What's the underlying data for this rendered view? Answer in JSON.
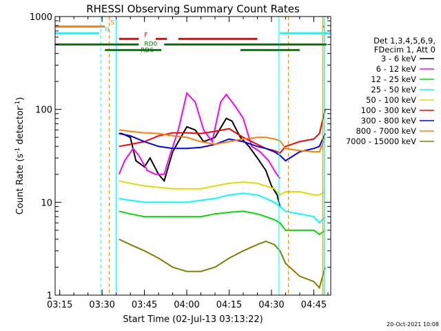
{
  "chart_data": {
    "type": "line",
    "title": "RHESSI Observing Summary Count Rates",
    "xlabel": "Start Time (02-Jul-13 03:13:22)",
    "ylabel_main": "Count Rate (s",
    "ylabel_sup": "-1",
    "ylabel_mid": " detector",
    "ylabel_end": ")",
    "yscale": "log",
    "ylim": [
      1,
      1000
    ],
    "y_ticks": [
      {
        "value": 1,
        "label": "1"
      },
      {
        "value": 10,
        "label": "10"
      },
      {
        "value": 100,
        "label": "100"
      },
      {
        "value": 1000,
        "label": "1000"
      }
    ],
    "x_start": "03:13:22",
    "x_end": "04:51:00",
    "x_ticks": [
      {
        "value": "03:15",
        "label": "03:15"
      },
      {
        "value": "03:30",
        "label": "03:30"
      },
      {
        "value": "03:45",
        "label": "03:45"
      },
      {
        "value": "04:00",
        "label": "04:00"
      },
      {
        "value": "04:15",
        "label": "04:15"
      },
      {
        "value": "04:30",
        "label": "04:30"
      },
      {
        "value": "04:45",
        "label": "04:45"
      }
    ],
    "legend_header": [
      "Det 1,3,4,5,6,9,",
      "FDecim 1, Att 0"
    ],
    "series": [
      {
        "name": "3 - 6 keV",
        "color": "#000000",
        "x": [
          "03:36",
          "03:37",
          "03:40",
          "03:42",
          "03:45",
          "03:47",
          "03:50",
          "03:52",
          "03:55",
          "04:00",
          "04:03",
          "04:06",
          "04:10",
          "04:14",
          "04:16",
          "04:19",
          "04:22",
          "04:25",
          "04:28",
          "04:30",
          "04:32",
          "04:33"
        ],
        "values": [
          55,
          55,
          50,
          28,
          24,
          30,
          20,
          17,
          35,
          65,
          60,
          45,
          50,
          80,
          75,
          50,
          40,
          30,
          22,
          15,
          12,
          9
        ]
      },
      {
        "name": "6 - 12 keV",
        "color": "#ff00ff",
        "x": [
          "03:36",
          "03:38",
          "03:41",
          "03:43",
          "03:46",
          "03:49",
          "03:52",
          "03:54",
          "03:57",
          "04:00",
          "04:03",
          "04:06",
          "04:09",
          "04:12",
          "04:14",
          "04:17",
          "04:20",
          "04:23",
          "04:26",
          "04:29",
          "04:31",
          "04:33"
        ],
        "values": [
          20,
          28,
          38,
          32,
          22,
          20,
          20,
          32,
          60,
          150,
          120,
          60,
          45,
          120,
          145,
          110,
          80,
          40,
          35,
          28,
          22,
          18
        ]
      },
      {
        "name": "12 - 25 keV",
        "color": "#00dd00",
        "x": [
          "03:36",
          "03:40",
          "03:45",
          "03:50",
          "03:55",
          "04:00",
          "04:05",
          "04:10",
          "04:15",
          "04:20",
          "04:25",
          "04:28",
          "04:31",
          "04:33",
          "04:35",
          "04:40",
          "04:45",
          "04:47",
          "04:49"
        ],
        "values": [
          8,
          7.5,
          7,
          7,
          7,
          7,
          7,
          7.5,
          7.8,
          8,
          7.5,
          7,
          6.5,
          6,
          5,
          5,
          5,
          4.5,
          5
        ]
      },
      {
        "name": "25 - 50 keV",
        "color": "#00ffff",
        "x": [
          "03:36",
          "03:40",
          "03:45",
          "03:50",
          "03:55",
          "04:00",
          "04:05",
          "04:10",
          "04:15",
          "04:20",
          "04:25",
          "04:28",
          "04:31",
          "04:33",
          "04:35",
          "04:40",
          "04:45",
          "04:47",
          "04:49"
        ],
        "values": [
          11,
          10.5,
          10,
          10,
          10,
          10,
          10.5,
          11,
          12,
          12.5,
          12,
          11,
          10,
          9,
          8,
          7.5,
          7,
          6,
          7
        ]
      },
      {
        "name": "50 - 100 keV",
        "color": "#dddd00",
        "x": [
          "03:36",
          "03:40",
          "03:45",
          "03:50",
          "03:55",
          "04:00",
          "04:05",
          "04:10",
          "04:15",
          "04:20",
          "04:25",
          "04:28",
          "04:31",
          "04:33",
          "04:35",
          "04:40",
          "04:45",
          "04:47",
          "04:49"
        ],
        "values": [
          17,
          16,
          15,
          14.5,
          14,
          14,
          14,
          15,
          16,
          16.5,
          16,
          15,
          14,
          12,
          13,
          13,
          12,
          12,
          13
        ]
      },
      {
        "name": "100 - 300 keV",
        "color": "#ff0000",
        "x": [
          "03:36",
          "03:40",
          "03:45",
          "03:50",
          "03:55",
          "04:00",
          "04:05",
          "04:10",
          "04:15",
          "04:20",
          "04:25",
          "04:28",
          "04:31",
          "04:33",
          "04:35",
          "04:40",
          "04:45",
          "04:47",
          "04:49"
        ],
        "values": [
          40,
          42,
          45,
          52,
          56,
          56,
          55,
          58,
          62,
          50,
          42,
          38,
          36,
          34,
          40,
          45,
          48,
          55,
          100
        ]
      },
      {
        "name": "300 - 800 keV",
        "color": "#0000ff",
        "x": [
          "03:36",
          "03:40",
          "03:45",
          "03:50",
          "03:55",
          "04:00",
          "04:05",
          "04:10",
          "04:15",
          "04:20",
          "04:25",
          "04:28",
          "04:31",
          "04:33",
          "04:35",
          "04:40",
          "04:45",
          "04:47",
          "04:49"
        ],
        "values": [
          55,
          52,
          45,
          40,
          38,
          38,
          39,
          42,
          48,
          45,
          40,
          38,
          35,
          32,
          28,
          35,
          38,
          40,
          55
        ]
      },
      {
        "name": "800 - 7000 keV",
        "color": "#ff8000",
        "x": [
          "03:36",
          "03:40",
          "03:45",
          "03:50",
          "03:55",
          "04:00",
          "04:05",
          "04:10",
          "04:15",
          "04:20",
          "04:25",
          "04:28",
          "04:31",
          "04:33",
          "04:35",
          "04:40",
          "04:45",
          "04:47",
          "04:49"
        ],
        "values": [
          60,
          58,
          56,
          55,
          52,
          50,
          45,
          42,
          45,
          48,
          50,
          50,
          48,
          46,
          38,
          36,
          35,
          35,
          50
        ]
      },
      {
        "name": "7000 - 15000 keV",
        "color": "#808000",
        "x": [
          "03:36",
          "03:40",
          "03:45",
          "03:50",
          "03:55",
          "04:00",
          "04:05",
          "04:10",
          "04:15",
          "04:20",
          "04:25",
          "04:28",
          "04:31",
          "04:33",
          "04:35",
          "04:40",
          "04:45",
          "04:47",
          "04:49"
        ],
        "values": [
          4,
          3.5,
          3,
          2.5,
          2,
          1.8,
          1.8,
          2,
          2.5,
          3,
          3.5,
          3.8,
          3.5,
          3,
          2.2,
          1.6,
          1.4,
          1.2,
          2
        ]
      }
    ],
    "flag_bars": [
      {
        "label": "S",
        "color": "#ff8000",
        "level": 780,
        "segments": [
          [
            "03:13:22",
            "03:31:00"
          ],
          [
            "04:48:10",
            "04:48:40"
          ]
        ]
      },
      {
        "label": "N",
        "color": "#00ffff",
        "level": 660,
        "segments": [
          [
            "03:13:22",
            "03:29:00"
          ],
          [
            "04:33:00",
            "04:51:00"
          ]
        ]
      },
      {
        "label": "F",
        "color": "#ff0000",
        "level": 575,
        "segments": [
          [
            "03:36:00",
            "03:43:00"
          ],
          [
            "03:49:00",
            "03:53:00"
          ],
          [
            "03:57:00",
            "04:25:00"
          ]
        ]
      },
      {
        "label": "RD0",
        "color": "#008000",
        "level": 500,
        "segments": [
          [
            "03:13:22",
            "03:43:00"
          ],
          [
            "03:52:00",
            "04:49:30"
          ]
        ]
      },
      {
        "label": "RD6",
        "color": "#008000",
        "level": 435,
        "segments": [
          [
            "03:31:00",
            "03:51:00"
          ],
          [
            "04:19:00",
            "04:40:00"
          ]
        ]
      }
    ],
    "vertical_markers": [
      {
        "time": "03:29:30",
        "color": "#00ffff",
        "style": "dashed"
      },
      {
        "time": "03:32:30",
        "color": "#ff8000",
        "style": "dashed"
      },
      {
        "time": "03:35:00",
        "color": "#00ffff",
        "style": "solid"
      },
      {
        "time": "04:32:40",
        "color": "#00ffff",
        "style": "solid"
      },
      {
        "time": "04:36:00",
        "color": "#ff8000",
        "style": "dashed"
      },
      {
        "time": "04:48:10",
        "color": "#ff8000",
        "style": "solid"
      },
      {
        "time": "04:48:40",
        "color": "#00ffff",
        "style": "solid"
      }
    ],
    "timestamp": "20-Oct-2021 10:08"
  }
}
